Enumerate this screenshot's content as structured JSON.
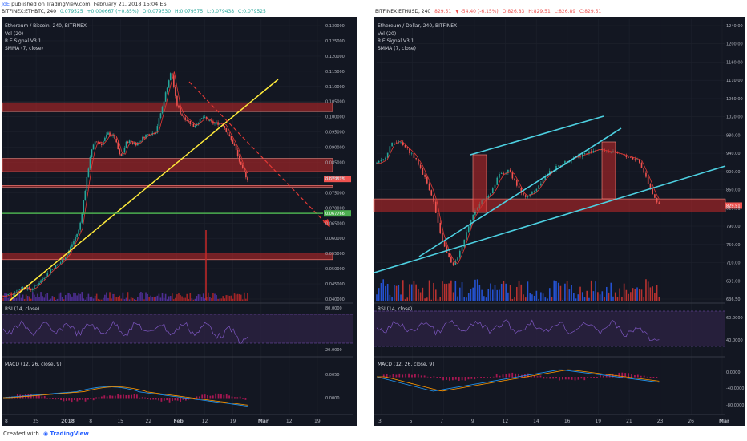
{
  "header": {
    "user": "JoE",
    "published": "published on TradingView.com, February 21, 2018 15:04 EST"
  },
  "left": {
    "symbol": "BITFINEX:ETHBTC, 240",
    "ohlc": [
      "0.079525",
      "+0.000667 (+0.85%)",
      "O:0.079530",
      "H:0.079575",
      "L:0.079438",
      "C:0.079525"
    ],
    "title": "Ethereum / Bitcoin, 240, BITFINEX",
    "indicators": [
      "Vol (20)",
      "R.E.Signal V3.1",
      "SMMA (7, close)"
    ],
    "rsi_label": "RSI (14, close)",
    "macd_label": "MACD (12, 26, close, 9)"
  },
  "right": {
    "symbol": "BITFINEX:ETHUSD, 240",
    "ohlc": [
      "829.51",
      "▼ -54.40 (-6.15%)",
      "O:826.83",
      "H:829.51",
      "L:826.89",
      "C:829.51"
    ],
    "title": "Ethereum / Dollar, 240, BITFINEX",
    "indicators": [
      "Vol (20)",
      "R.E.Signal V3.1",
      "SMMA (7, close)"
    ],
    "rsi_label": "RSI (14, close)",
    "macd_label": "MACD (12, 26, close, 9)"
  },
  "footer": {
    "created_with": "Created with",
    "brand": "TradingView"
  },
  "colors": {
    "bg": "#131722",
    "candle_up": "#26a69a",
    "candle_down": "#ef5350",
    "zone": "#c62828",
    "trend_yellow": "#ffeb3b",
    "trend_cyan": "#4dd0e1",
    "level_green": "#4caf50",
    "rsi_band": "#2a2140"
  },
  "chart_data": [
    {
      "type": "candlestick",
      "title": "Ethereum / Bitcoin, 240, BITFINEX",
      "x_ticks": [
        "8",
        "25",
        "2018",
        "8",
        "15",
        "22",
        "Feb",
        "12",
        "19",
        "Mar",
        "12",
        "19"
      ],
      "y_ticks": [
        "0.130000",
        "0.125000",
        "0.120000",
        "0.115000",
        "0.110000",
        "0.105000",
        "0.100000",
        "0.095000",
        "0.090000",
        "0.085000",
        "0.080000",
        "0.075000",
        "0.070000",
        "0.065000",
        "0.060000",
        "0.055000",
        "0.050000",
        "0.045000",
        "0.040000"
      ],
      "ylim": [
        0.038,
        0.134
      ],
      "price_path": [
        [
          0,
          0.0395
        ],
        [
          0.03,
          0.0405
        ],
        [
          0.06,
          0.0425
        ],
        [
          0.09,
          0.0418
        ],
        [
          0.12,
          0.045
        ],
        [
          0.15,
          0.0485
        ],
        [
          0.18,
          0.051
        ],
        [
          0.2,
          0.0535
        ],
        [
          0.22,
          0.058
        ],
        [
          0.24,
          0.0625
        ],
        [
          0.26,
          0.077
        ],
        [
          0.275,
          0.088
        ],
        [
          0.29,
          0.0925
        ],
        [
          0.31,
          0.0915
        ],
        [
          0.33,
          0.095
        ],
        [
          0.35,
          0.094
        ],
        [
          0.37,
          0.0865
        ],
        [
          0.39,
          0.0925
        ],
        [
          0.42,
          0.0915
        ],
        [
          0.45,
          0.0945
        ],
        [
          0.48,
          0.0955
        ],
        [
          0.5,
          0.1035
        ],
        [
          0.52,
          0.1125
        ],
        [
          0.53,
          0.1165
        ],
        [
          0.545,
          0.1055
        ],
        [
          0.56,
          0.1015
        ],
        [
          0.58,
          0.0995
        ],
        [
          0.6,
          0.0975
        ],
        [
          0.63,
          0.1005
        ],
        [
          0.66,
          0.0985
        ],
        [
          0.69,
          0.0985
        ],
        [
          0.71,
          0.0945
        ],
        [
          0.73,
          0.0905
        ],
        [
          0.75,
          0.0835
        ],
        [
          0.77,
          0.0795
        ]
      ],
      "zones": [
        [
          0.1025,
          0.1055
        ],
        [
          0.082,
          0.0865
        ],
        [
          0.077,
          0.0773
        ],
        [
          0.052,
          0.0543
        ]
      ],
      "levels": [
        {
          "label": "0.067766",
          "value": 0.067766,
          "color": "#4caf50"
        }
      ],
      "current_price": "0.079525",
      "rsi": {
        "ylim": [
          10,
          90
        ],
        "y_ticks": [
          "80.0000",
          "20.0000"
        ]
      },
      "macd": {
        "y_ticks": [
          "0.0050",
          "0.0000"
        ]
      }
    },
    {
      "type": "candlestick",
      "title": "Ethereum / Dollar, 240, BITFINEX",
      "x_ticks": [
        "3",
        "5",
        "7",
        "9",
        "12",
        "14",
        "16",
        "19",
        "21",
        "23",
        "26",
        "Mar"
      ],
      "y_ticks": [
        "1240.00",
        "1200.00",
        "1160.00",
        "1110.00",
        "1060.00",
        "1020.00",
        "980.00",
        "940.00",
        "900.00",
        "860.00",
        "829.51",
        "790.00",
        "750.00",
        "710.00",
        "691.00",
        "636.50"
      ],
      "ylim": [
        610,
        1260
      ],
      "price_path": [
        [
          0,
          927
        ],
        [
          0.02,
          935
        ],
        [
          0.04,
          970
        ],
        [
          0.06,
          980
        ],
        [
          0.08,
          965
        ],
        [
          0.1,
          950
        ],
        [
          0.12,
          925
        ],
        [
          0.14,
          890
        ],
        [
          0.16,
          850
        ],
        [
          0.18,
          770
        ],
        [
          0.2,
          720
        ],
        [
          0.22,
          690
        ],
        [
          0.24,
          725
        ],
        [
          0.27,
          800
        ],
        [
          0.3,
          840
        ],
        [
          0.33,
          860
        ],
        [
          0.35,
          900
        ],
        [
          0.38,
          910
        ],
        [
          0.4,
          880
        ],
        [
          0.42,
          850
        ],
        [
          0.45,
          860
        ],
        [
          0.48,
          895
        ],
        [
          0.5,
          910
        ],
        [
          0.53,
          925
        ],
        [
          0.56,
          940
        ],
        [
          0.6,
          950
        ],
        [
          0.63,
          960
        ],
        [
          0.66,
          955
        ],
        [
          0.69,
          950
        ],
        [
          0.71,
          945
        ],
        [
          0.73,
          940
        ],
        [
          0.75,
          935
        ],
        [
          0.77,
          900
        ],
        [
          0.79,
          860
        ],
        [
          0.81,
          829.5
        ]
      ],
      "zones": [
        [
          815,
          845
        ]
      ],
      "current_price": "829.51",
      "rsi": {
        "y_ticks": [
          "60.0000",
          "40.0000"
        ]
      },
      "macd": {
        "y_ticks": [
          "0.0000",
          "-40.0000",
          "-80.0000"
        ]
      }
    }
  ]
}
